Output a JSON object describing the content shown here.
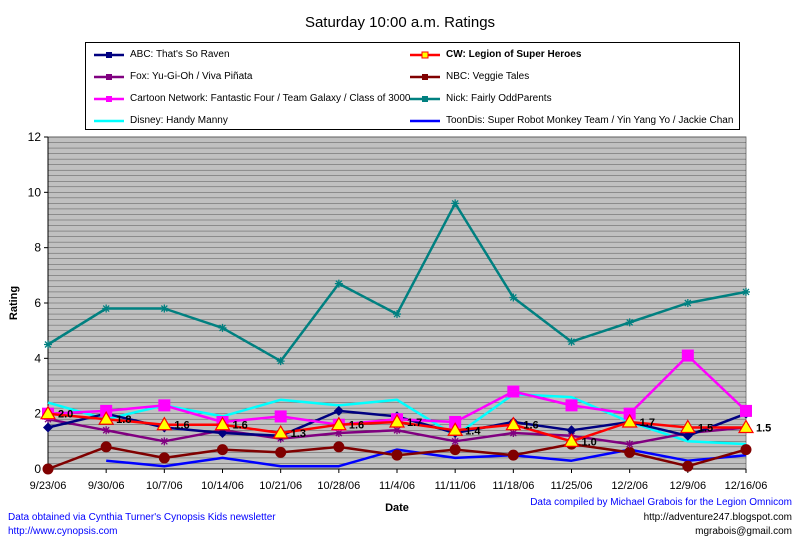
{
  "chart_data": {
    "type": "line",
    "title": "Saturday 10:00 a.m. Ratings",
    "xlabel": "Date",
    "ylabel": "Rating",
    "ylim": [
      0,
      12
    ],
    "yticks": [
      "0",
      "2",
      "4",
      "6",
      "8",
      "10",
      "12"
    ],
    "grid": true,
    "legend_position": "top",
    "categories": [
      "9/23/06",
      "9/30/06",
      "10/7/06",
      "10/14/06",
      "10/21/06",
      "10/28/06",
      "11/4/06",
      "11/11/06",
      "11/18/06",
      "11/25/06",
      "12/2/06",
      "12/9/06",
      "12/16/06"
    ],
    "series": [
      {
        "name": "ABC: That's So Raven",
        "color": "#000080",
        "marker": "diamond",
        "values": [
          1.5,
          2.0,
          1.5,
          1.3,
          1.2,
          2.1,
          1.9,
          1.3,
          1.7,
          1.4,
          1.7,
          1.2,
          2.0
        ]
      },
      {
        "name": "CW: Legion of Super Heroes",
        "color": "#ff0000",
        "marker": "triangle",
        "values": [
          2.0,
          1.8,
          1.6,
          1.6,
          1.3,
          1.6,
          1.7,
          1.4,
          1.6,
          1.0,
          1.7,
          1.5,
          1.5
        ]
      },
      {
        "name": "Fox: Yu-Gi-Oh / Viva Piñata",
        "color": "#800080",
        "marker": "star",
        "values": [
          1.8,
          1.4,
          1.0,
          1.4,
          1.1,
          1.3,
          1.4,
          1.0,
          1.3,
          1.2,
          0.9,
          1.3,
          1.5
        ]
      },
      {
        "name": "NBC: Veggie Tales",
        "color": "#800000",
        "marker": "circle",
        "values": [
          0.0,
          0.8,
          0.4,
          0.7,
          0.6,
          0.8,
          0.5,
          0.7,
          0.5,
          0.9,
          0.6,
          0.1,
          0.7
        ]
      },
      {
        "name": "Cartoon Network: Fantastic Four / Team Galaxy / Class of 3000",
        "color": "#ff00ff",
        "marker": "square",
        "values": [
          2.0,
          2.1,
          2.3,
          1.7,
          1.9,
          1.6,
          1.8,
          1.7,
          2.8,
          2.3,
          2.0,
          4.1,
          2.1
        ]
      },
      {
        "name": "Nick: Fairly OddParents",
        "color": "#008080",
        "marker": "star",
        "values": [
          4.5,
          5.8,
          5.8,
          5.1,
          3.9,
          6.7,
          5.6,
          9.6,
          6.2,
          4.6,
          5.3,
          6.0,
          6.4
        ]
      },
      {
        "name": "Disney: Handy Manny",
        "color": "#00ffff",
        "marker": "none",
        "values": [
          2.4,
          1.8,
          2.3,
          1.9,
          2.5,
          2.3,
          2.5,
          1.2,
          2.7,
          2.6,
          1.7,
          1.0,
          0.9
        ]
      },
      {
        "name": "ToonDis: Super Robot Monkey Team / Yin Yang Yo / Jackie Chan",
        "color": "#0000ff",
        "marker": "none",
        "values": [
          null,
          0.3,
          0.1,
          0.4,
          0.1,
          0.1,
          0.7,
          0.4,
          0.5,
          0.3,
          0.7,
          0.3,
          0.5
        ]
      }
    ],
    "data_labels": [
      {
        "series": 1,
        "index": 0,
        "text": "2.0"
      },
      {
        "series": 1,
        "index": 1,
        "text": "1.8"
      },
      {
        "series": 1,
        "index": 2,
        "text": "1.6"
      },
      {
        "series": 1,
        "index": 3,
        "text": "1.6"
      },
      {
        "series": 1,
        "index": 4,
        "text": "1.3"
      },
      {
        "series": 1,
        "index": 5,
        "text": "1.6"
      },
      {
        "series": 1,
        "index": 6,
        "text": "1.7"
      },
      {
        "series": 1,
        "index": 7,
        "text": "1.4"
      },
      {
        "series": 1,
        "index": 8,
        "text": "1.6"
      },
      {
        "series": 1,
        "index": 9,
        "text": "1.0"
      },
      {
        "series": 1,
        "index": 10,
        "text": "1.7"
      },
      {
        "series": 1,
        "index": 11,
        "text": "1.5"
      },
      {
        "series": 1,
        "index": 12,
        "text": "1.5"
      }
    ]
  },
  "notes": {
    "source": "Data obtained via Cynthia Turner's Cynopsis Kids newsletter",
    "source_url": "http://www.cynopsis.com",
    "compiled": "Data compiled by Michael Grabois for the Legion Omnicom",
    "blog_url": "http://adventure247.blogspot.com",
    "email": "mgrabois@gmail.com"
  }
}
